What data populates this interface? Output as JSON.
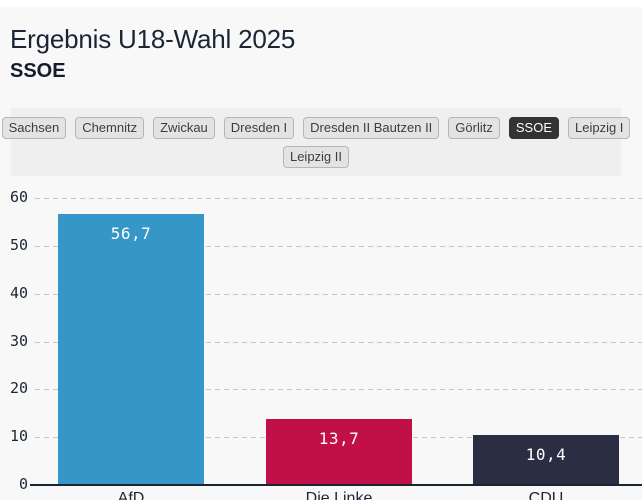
{
  "header": {
    "title": "Ergebnis U18-Wahl 2025",
    "subtitle": "SSOE"
  },
  "tabs": {
    "selected": "SSOE",
    "rows": [
      [
        "Sachsen",
        "Chemnitz",
        "Zwickau",
        "Dresden I",
        "Dresden II Bautzen II",
        "Görlitz",
        "SSOE",
        "Leipzig I"
      ],
      [
        "Leipzig II"
      ]
    ]
  },
  "chart_data": {
    "type": "bar",
    "title": "Ergebnis U18-Wahl 2025",
    "subtitle": "SSOE",
    "categories": [
      "AfD",
      "Die Linke",
      "CDU"
    ],
    "values": [
      56.7,
      13.7,
      10.4
    ],
    "value_labels": [
      "56,7",
      "13,7",
      "10,4"
    ],
    "bar_colors": [
      "#3596c8",
      "#c01047",
      "#2b2d42"
    ],
    "xlabel": "",
    "ylabel": "",
    "ylim": [
      0,
      60
    ],
    "yticks": [
      0,
      10,
      20,
      30,
      40,
      50,
      60
    ],
    "grid": "horizontal-dashed",
    "legend": "none",
    "note": "right edge of chart clipped by viewport"
  },
  "colors": {
    "page_bg": "#f8f8f8",
    "tabbar_bg": "#efefef",
    "tab_bg": "#e3e3e3",
    "tab_selected_bg": "#333333",
    "text": "#1b2635",
    "axis": "#1b2635",
    "gridline": "#c6c6c6"
  }
}
